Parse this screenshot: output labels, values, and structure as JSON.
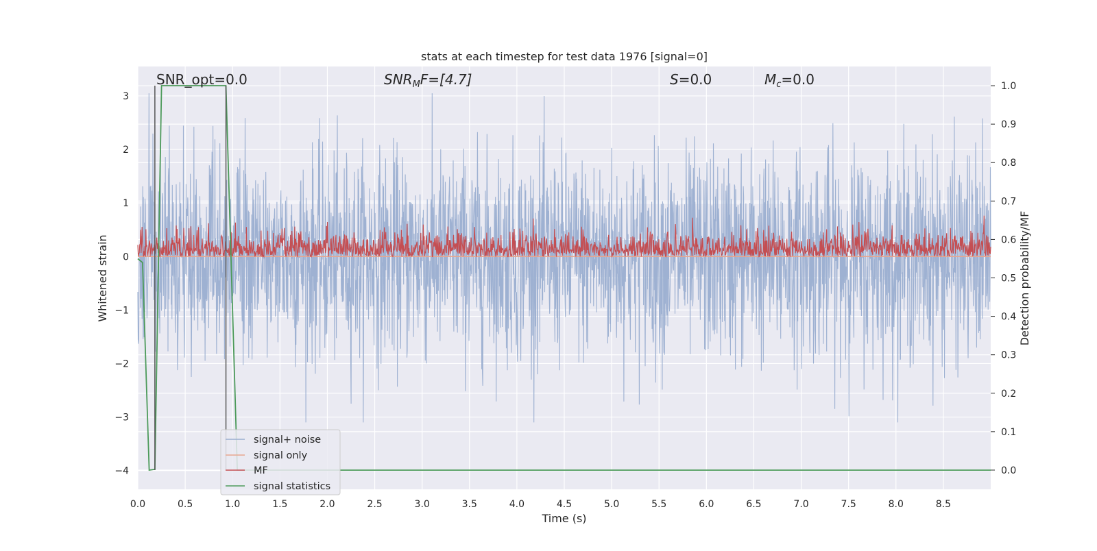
{
  "chart_data": {
    "type": "line",
    "title": "stats at each timestep for test data 1976 [signal=0]",
    "xlabel": "Time (s)",
    "ylabel_left": "Whitened strain",
    "ylabel_right": "Detection probability/MF",
    "xlim": [
      0.0,
      9.0
    ],
    "ylim_left": [
      -4.35,
      3.55
    ],
    "ylim_right": [
      -0.05,
      1.05
    ],
    "xticks": [
      "0.0",
      "0.5",
      "1.0",
      "1.5",
      "2.0",
      "2.5",
      "3.0",
      "3.5",
      "4.0",
      "4.5",
      "5.0",
      "5.5",
      "6.0",
      "6.5",
      "7.0",
      "7.5",
      "8.0",
      "8.5"
    ],
    "yticks_left": [
      "3",
      "2",
      "1",
      "0",
      "−1",
      "−2",
      "−3",
      "−4"
    ],
    "yticks_right": [
      "1.0",
      "0.9",
      "0.8",
      "0.7",
      "0.6",
      "0.5",
      "0.4",
      "0.3",
      "0.2",
      "0.1",
      "0.0"
    ],
    "grid": true,
    "legend_position": "lower-left",
    "annotations": {
      "snr_opt": "SNR_opt=0.0",
      "snr_mf_main": "SNR",
      "snr_mf_sub": "M",
      "snr_mf_rest": "F=[4.7]",
      "s_main": "S",
      "s_rest": "=0.0",
      "mc_main": "M",
      "mc_sub": "c",
      "mc_rest": "=0.0"
    },
    "vertical_markers_x": [
      0.18,
      0.93
    ],
    "series": [
      {
        "name": "signal+ noise",
        "color": "#9aaed0",
        "axis": "left",
        "style": "noise",
        "x_range": [
          0.0,
          9.0
        ],
        "mean": 0.0,
        "std": 0.95,
        "min": -3.1,
        "max": 3.05
      },
      {
        "name": "signal only",
        "color": "#e8a68f",
        "axis": "left",
        "x": [
          0.0,
          9.0
        ],
        "y": [
          0.0,
          0.0
        ]
      },
      {
        "name": "MF",
        "color": "#c44e52",
        "axis": "right",
        "style": "noise-band",
        "x_range": [
          0.0,
          9.0
        ],
        "base": 0.555,
        "min": 0.555,
        "max": 0.7
      },
      {
        "name": "signal statistics",
        "color": "#4c9a5a",
        "axis": "right",
        "x": [
          0.0,
          0.05,
          0.12,
          0.18,
          0.25,
          0.93,
          1.05,
          2.15,
          9.0
        ],
        "y": [
          0.55,
          0.54,
          0.0,
          0.002,
          1.0,
          1.0,
          0.0,
          0.0,
          0.0
        ]
      }
    ]
  }
}
